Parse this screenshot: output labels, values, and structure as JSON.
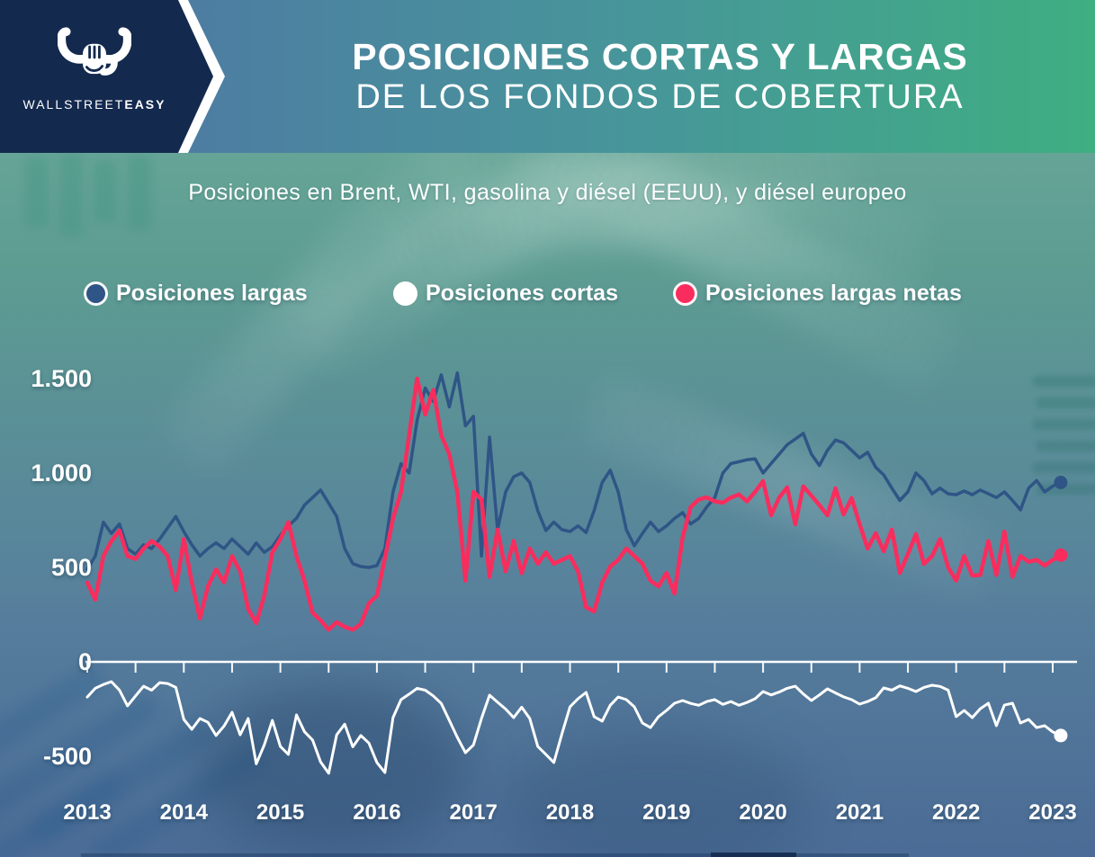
{
  "header": {
    "brand_regular": "WALLSTREET",
    "brand_bold": "EASY",
    "title_line1": "POSICIONES CORTAS Y LARGAS",
    "title_line2": "DE LOS FONDOS DE COBERTURA"
  },
  "subtitle": "Posiciones en Brent, WTI, gasolina y diésel (EEUU), y diésel europeo",
  "colors": {
    "navy_panel": "#13294e",
    "header_gradient_left": "#4e7aa3",
    "header_gradient_right": "#3fae81",
    "long_positions": "#2f5586",
    "short_positions": "#ffffff",
    "net_long_positions": "#f82d5e"
  },
  "chart_data": {
    "type": "line",
    "title": "Posiciones cortas y largas de los fondos de cobertura",
    "subtitle": "Posiciones en Brent, WTI, gasolina y diésel (EEUU), y diésel europeo",
    "x_start_year": 2013,
    "x_step_months": 1,
    "xlim": [
      2012.9,
      2023.4
    ],
    "ylim": [
      -650,
      1600
    ],
    "grid": false,
    "legend_position": "top",
    "x_axis": {
      "ticks": [
        "2013",
        "2014",
        "2015",
        "2016",
        "2017",
        "2018",
        "2019",
        "2020",
        "2021",
        "2022",
        "2023"
      ],
      "minor_tick_interval_years": 0.5
    },
    "y_axis": {
      "ticks": [
        {
          "value": 1500,
          "label": "1.500"
        },
        {
          "value": 1000,
          "label": "1.000"
        },
        {
          "value": 500,
          "label": "500"
        },
        {
          "value": 0,
          "label": "0"
        },
        {
          "value": -500,
          "label": "-500"
        }
      ]
    },
    "series": [
      {
        "name": "Posiciones largas",
        "color": "#2f5586",
        "end_marker": true,
        "values": [
          490,
          560,
          740,
          680,
          730,
          600,
          570,
          620,
          600,
          650,
          710,
          770,
          690,
          620,
          560,
          600,
          630,
          600,
          650,
          610,
          570,
          630,
          580,
          610,
          670,
          720,
          760,
          830,
          870,
          910,
          840,
          770,
          600,
          520,
          505,
          500,
          510,
          600,
          900,
          1050,
          1000,
          1280,
          1450,
          1380,
          1520,
          1350,
          1530,
          1250,
          1300,
          560,
          1190,
          700,
          900,
          980,
          1000,
          950,
          800,
          695,
          740,
          700,
          690,
          720,
          685,
          800,
          950,
          1015,
          900,
          700,
          615,
          680,
          740,
          690,
          720,
          760,
          790,
          730,
          760,
          820,
          870,
          1000,
          1050,
          1060,
          1070,
          1075,
          1000,
          1050,
          1100,
          1150,
          1180,
          1210,
          1100,
          1040,
          1120,
          1175,
          1160,
          1120,
          1080,
          1110,
          1030,
          990,
          920,
          855,
          900,
          1000,
          960,
          890,
          920,
          890,
          885,
          905,
          885,
          910,
          890,
          870,
          900,
          855,
          805,
          920,
          960,
          900,
          930,
          950
        ]
      },
      {
        "name": "Posiciones cortas",
        "color": "#ffffff",
        "end_marker": true,
        "values": [
          -186,
          -140,
          -120,
          -105,
          -150,
          -233,
          -180,
          -129,
          -150,
          -110,
          -115,
          -135,
          -305,
          -357,
          -300,
          -320,
          -390,
          -340,
          -267,
          -386,
          -300,
          -540,
          -440,
          -310,
          -448,
          -490,
          -281,
          -370,
          -414,
          -530,
          -590,
          -386,
          -330,
          -450,
          -390,
          -430,
          -533,
          -586,
          -295,
          -200,
          -171,
          -140,
          -150,
          -180,
          -220,
          -310,
          -400,
          -481,
          -440,
          -300,
          -176,
          -214,
          -250,
          -295,
          -240,
          -300,
          -448,
          -490,
          -533,
          -380,
          -238,
          -195,
          -162,
          -290,
          -314,
          -230,
          -186,
          -200,
          -238,
          -324,
          -348,
          -290,
          -257,
          -219,
          -205,
          -220,
          -230,
          -210,
          -200,
          -225,
          -210,
          -230,
          -215,
          -195,
          -157,
          -175,
          -160,
          -140,
          -129,
          -170,
          -205,
          -175,
          -143,
          -165,
          -185,
          -200,
          -224,
          -210,
          -190,
          -138,
          -150,
          -127,
          -140,
          -157,
          -135,
          -124,
          -130,
          -150,
          -290,
          -257,
          -295,
          -248,
          -219,
          -338,
          -229,
          -219,
          -324,
          -305,
          -348,
          -338,
          -371,
          -390
        ]
      },
      {
        "name": "Posiciones largas netas",
        "color": "#f82d5e",
        "end_marker": true,
        "values": [
          420,
          330,
          560,
          640,
          695,
          560,
          545,
          600,
          640,
          610,
          560,
          380,
          650,
          420,
          230,
          400,
          490,
          420,
          560,
          480,
          280,
          205,
          350,
          580,
          650,
          740,
          560,
          430,
          260,
          220,
          170,
          210,
          185,
          170,
          200,
          310,
          350,
          550,
          760,
          900,
          1200,
          1500,
          1310,
          1440,
          1200,
          1100,
          900,
          430,
          900,
          860,
          450,
          700,
          480,
          640,
          470,
          600,
          520,
          580,
          520,
          540,
          560,
          480,
          290,
          267,
          420,
          505,
          540,
          600,
          560,
          520,
          430,
          400,
          471,
          362,
          660,
          820,
          860,
          871,
          850,
          843,
          870,
          886,
          850,
          900,
          957,
          776,
          870,
          924,
          729,
          929,
          880,
          830,
          776,
          919,
          781,
          867,
          729,
          600,
          681,
          586,
          700,
          471,
          570,
          676,
          519,
          560,
          650,
          500,
          430,
          560,
          457,
          460,
          640,
          460,
          690,
          450,
          560,
          530,
          540,
          510,
          540,
          565
        ]
      }
    ]
  }
}
